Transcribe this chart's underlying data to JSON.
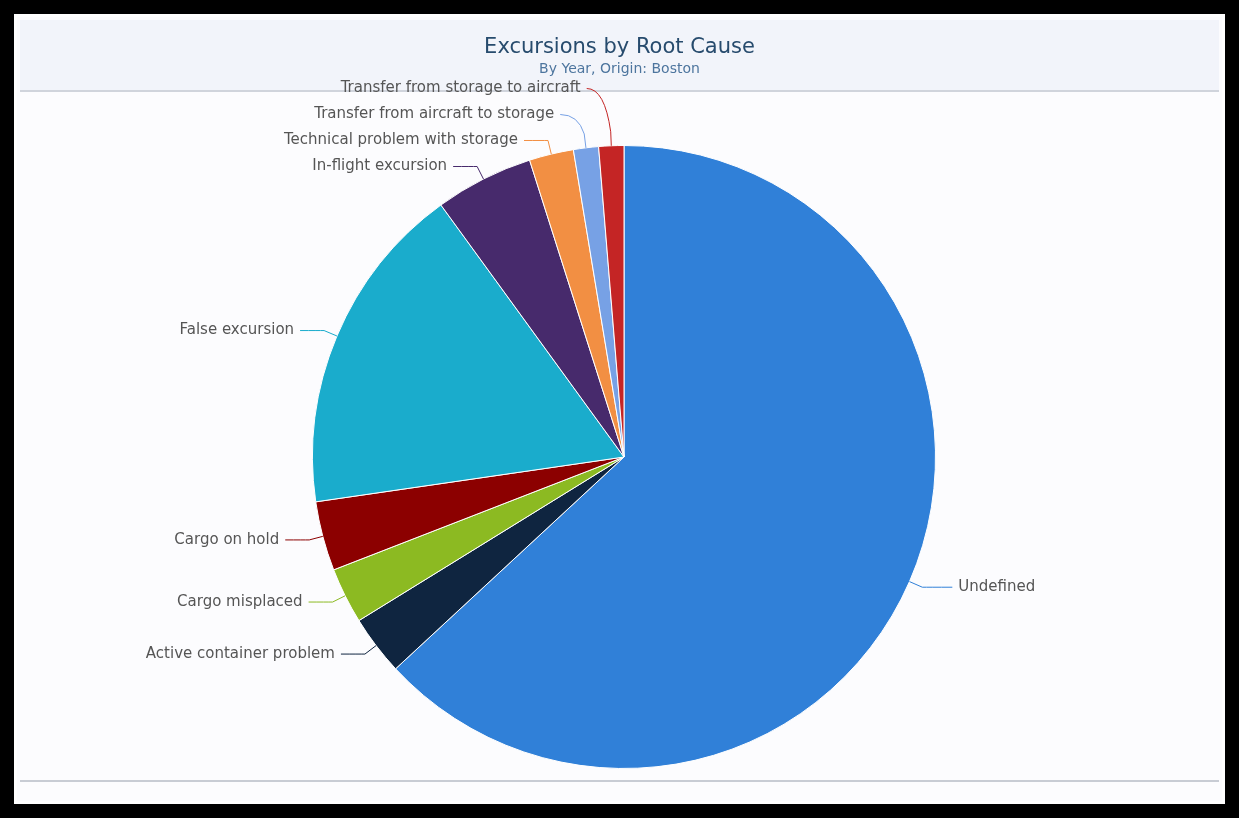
{
  "chart_data": {
    "type": "pie",
    "title": "Excursions by Root Cause",
    "subtitle": "By Year, Origin: Boston",
    "categories": [
      "Undefined",
      "Active container problem",
      "Cargo misplaced",
      "Cargo on hold",
      "False excursion",
      "In-flight excursion",
      "Technical problem with storage",
      "Transfer from aircraft to storage",
      "Transfer from storage to aircraft"
    ],
    "values": [
      63.1,
      3.1,
      2.9,
      3.6,
      17.3,
      5.1,
      2.3,
      1.3,
      1.3
    ],
    "colors": [
      "#3080d8",
      "#0f2540",
      "#8cba22",
      "#8c0000",
      "#1aaccc",
      "#472a6c",
      "#f28f43",
      "#77a1e5",
      "#c42525"
    ],
    "legend": false
  }
}
